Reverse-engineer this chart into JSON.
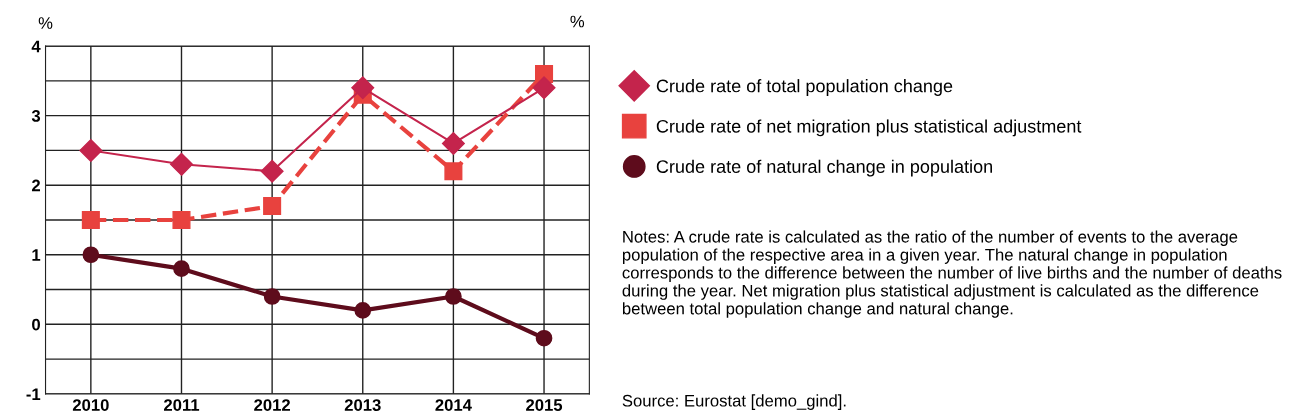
{
  "chart_data": {
    "type": "line",
    "ylabel": "%",
    "categories": [
      "2010",
      "2011",
      "2012",
      "2013",
      "2014",
      "2015"
    ],
    "series": [
      {
        "name": "Crude rate of total population change",
        "color": "#c4244c",
        "marker": "diamond",
        "line_style": "solid",
        "values": [
          2.5,
          2.3,
          2.2,
          3.4,
          2.6,
          3.4
        ]
      },
      {
        "name": "Crude rate of net migration plus statistical adjustment",
        "color": "#e8423e",
        "marker": "square",
        "line_style": "dashed",
        "values": [
          1.5,
          1.5,
          1.7,
          3.3,
          2.2,
          3.6
        ]
      },
      {
        "name": "Crude rate of natural change in population",
        "color": "#5e0c1c",
        "marker": "circle",
        "line_style": "solid",
        "values": [
          1.0,
          0.8,
          0.4,
          0.2,
          0.4,
          -0.2
        ]
      }
    ],
    "ylim": [
      -1,
      4
    ],
    "yticks": [
      -1,
      {
        "value": -0.5,
        "label": null
      },
      0,
      {
        "value": 0.5,
        "label": null
      },
      1,
      {
        "value": 1.5,
        "label": null
      },
      2,
      {
        "value": 2.5,
        "label": null
      },
      3,
      {
        "value": 3.5,
        "label": null
      },
      4
    ],
    "grid": true,
    "legend": "right",
    "annotations": [
      "%",
      "Notes: A crude rate is calculated as the ratio of the number of events to the average population of the respective area in a given year. The natural change in population corresponds to the difference between the number of live births and the number of deaths during the year. Net migration plus statistical adjustment is calculated as the difference between total population change and natural change.",
      "Source: Eurostat [demo_gind]."
    ]
  }
}
